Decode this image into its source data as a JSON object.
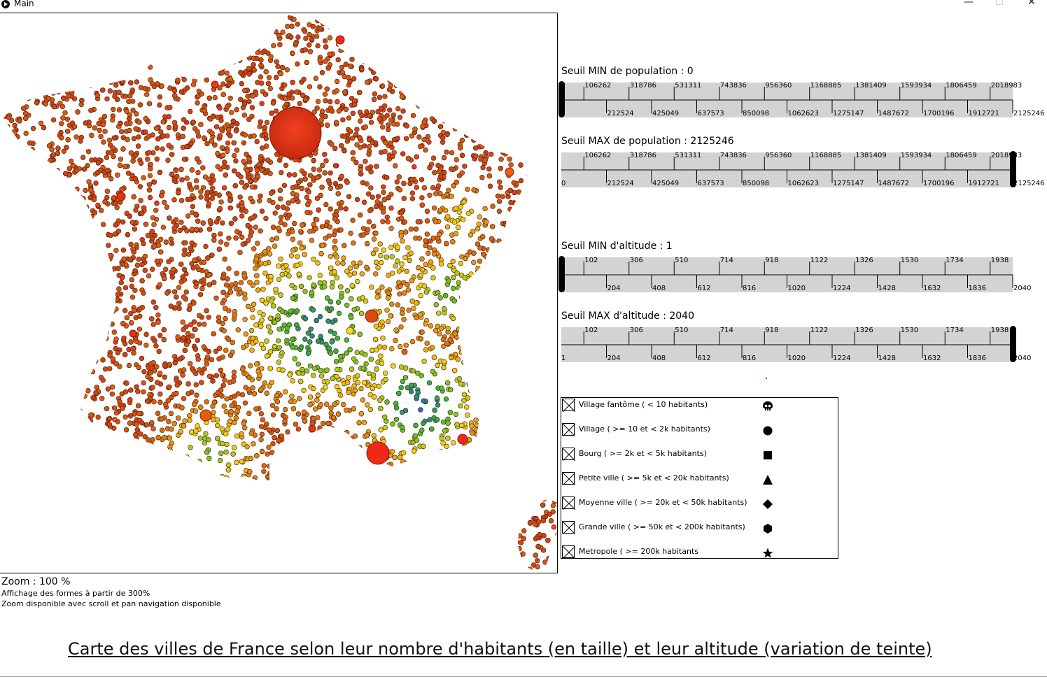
{
  "window": {
    "title": "Main",
    "minimize": "—",
    "maximize": "☐",
    "close": "✕"
  },
  "sliders": [
    {
      "label": "Seuil MIN de population : 0",
      "upper_ticks": [
        "106262",
        "318786",
        "531311",
        "743836",
        "956360",
        "1168885",
        "1381409",
        "1593934",
        "1806459",
        "2018983"
      ],
      "lower_ticks": [
        "212524",
        "425049",
        "637573",
        "850098",
        "1062623",
        "1275147",
        "1487672",
        "1700196",
        "1912721",
        "2125246"
      ],
      "min_label": "",
      "handle": 0
    },
    {
      "label": "Seuil MAX de population : 2125246",
      "upper_ticks": [
        "106262",
        "318786",
        "531311",
        "743836",
        "956360",
        "1168885",
        "1381409",
        "1593934",
        "1806459",
        "2018983"
      ],
      "lower_ticks": [
        "212524",
        "425049",
        "637573",
        "850098",
        "1062623",
        "1275147",
        "1487672",
        "1700196",
        "1912721",
        "2125246"
      ],
      "min_label": "0",
      "handle": 1
    },
    {
      "label": "Seuil MIN d'altitude : 1",
      "upper_ticks": [
        "102",
        "306",
        "510",
        "714",
        "918",
        "1122",
        "1326",
        "1530",
        "1734",
        "1938"
      ],
      "lower_ticks": [
        "204",
        "408",
        "612",
        "816",
        "1020",
        "1224",
        "1428",
        "1632",
        "1836",
        "2040"
      ],
      "min_label": "",
      "handle": 0
    },
    {
      "label": "Seuil MAX d'altitude : 2040",
      "upper_ticks": [
        "102",
        "306",
        "510",
        "714",
        "918",
        "1122",
        "1326",
        "1530",
        "1734",
        "1938"
      ],
      "lower_ticks": [
        "204",
        "408",
        "612",
        "816",
        "1020",
        "1224",
        "1428",
        "1632",
        "1836",
        "2040"
      ],
      "min_label": "1",
      "handle": 1
    }
  ],
  "legend": [
    {
      "label": "Village fantôme ( < 10 habitants)",
      "icon": "skull-icon"
    },
    {
      "label": "Village ( >= 10 et < 2k habitants)",
      "icon": "circle-icon"
    },
    {
      "label": "Bourg ( >= 2k et < 5k habitants)",
      "icon": "square-icon"
    },
    {
      "label": "Petite ville ( >= 5k et < 20k habitants)",
      "icon": "triangle-icon"
    },
    {
      "label": "Moyenne ville ( >= 20k et < 50k habitants)",
      "icon": "diamond-icon"
    },
    {
      "label": "Grande ville ( >= 50k et < 200k habitants)",
      "icon": "hexagon-icon"
    },
    {
      "label": "Metropole ( >= 200k habitants",
      "icon": "star-icon"
    }
  ],
  "zoom": {
    "text": "Zoom : 100 %",
    "hint_shapes": "Affichage des formes à partir de 300%",
    "hint_nav": "Zoom disponible avec scroll et pan navigation disponible"
  },
  "caption": "Carte des villes de France selon leur nombre d'habitants (en taille) et leur altitude (variation de teinte)",
  "colors": {
    "low_altitude": "#c62a10",
    "mid_altitude": "#e8c520",
    "high_altitude": "#2ec02e",
    "very_high_altitude": "#2060d0",
    "slider_track": "#d3d3d3"
  }
}
